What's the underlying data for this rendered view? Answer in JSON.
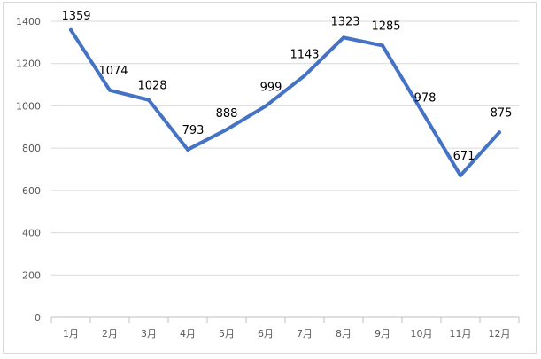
{
  "chart_data": {
    "type": "line",
    "categories": [
      "1月",
      "2月",
      "3月",
      "4月",
      "5月",
      "6月",
      "7月",
      "8月",
      "9月",
      "10月",
      "11月",
      "12月"
    ],
    "series": [
      {
        "values": [
          1359,
          1074,
          1028,
          793,
          888,
          999,
          1143,
          1323,
          1285,
          978,
          671,
          875
        ]
      }
    ],
    "ylim": [
      0,
      1400
    ],
    "yticks": [
      0,
      200,
      400,
      600,
      800,
      1000,
      1200,
      1400
    ],
    "grid": true,
    "data_labels": true,
    "legend": "none",
    "title": "",
    "xlabel": "",
    "ylabel": "",
    "colors": {
      "line": "#4472c4",
      "grid": "#d9d9d9",
      "axis": "#bfbfbf"
    }
  }
}
